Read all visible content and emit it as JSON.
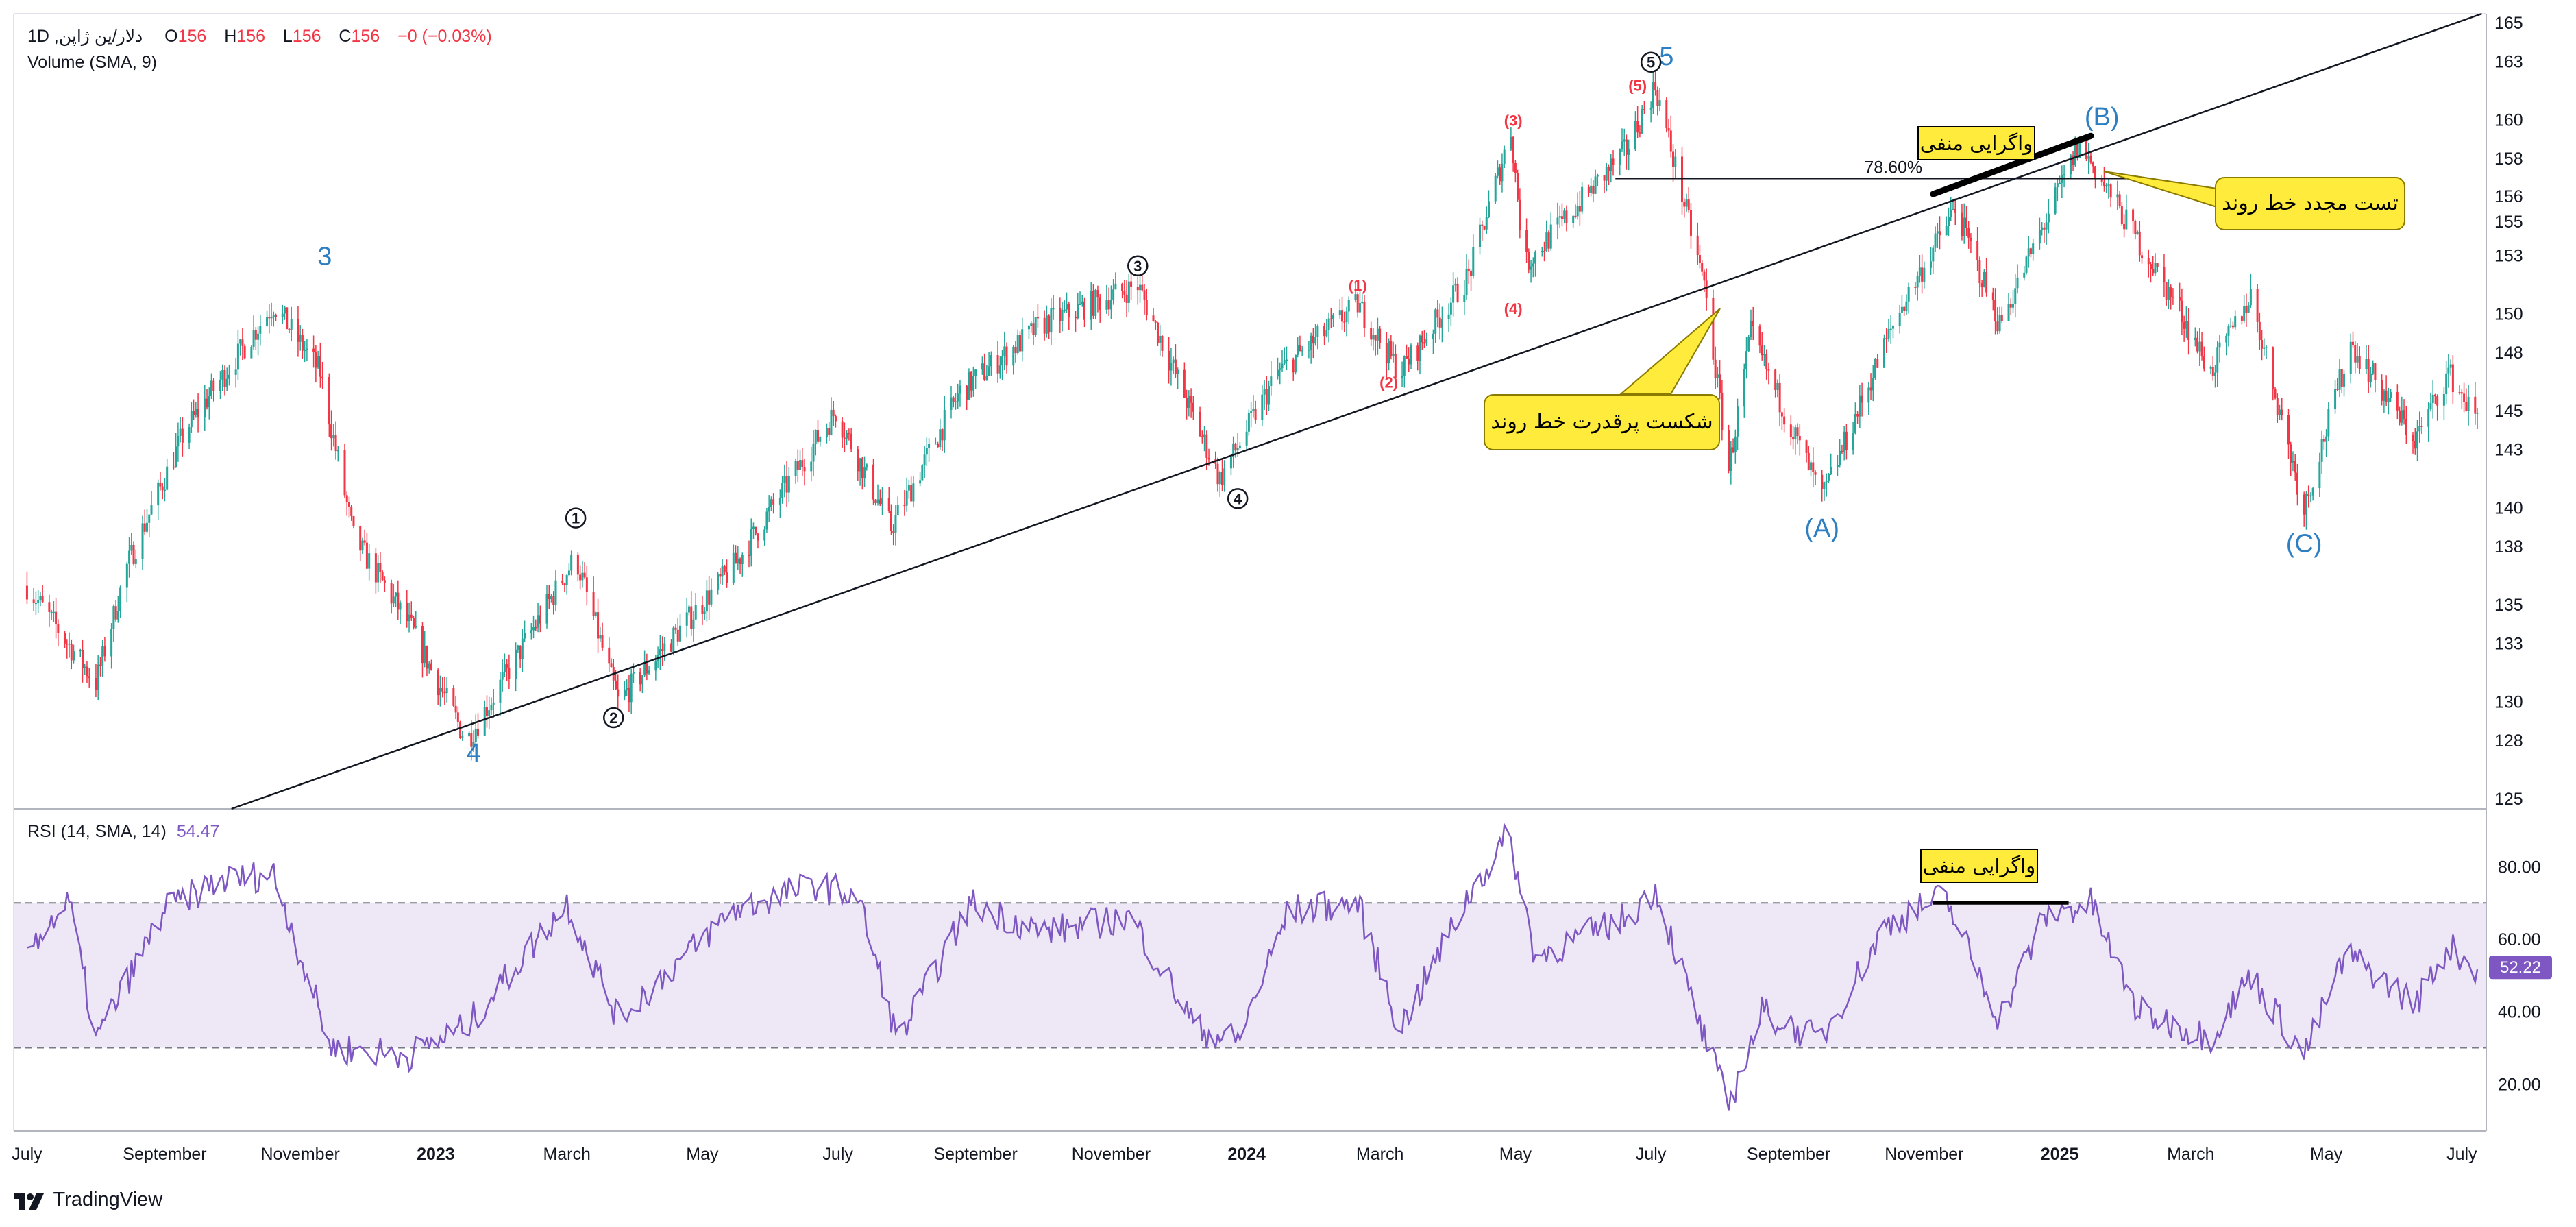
{
  "header": {
    "symbol_line": "دلار/ین ژاپن, 1D",
    "ohlc": {
      "o_label": "O",
      "o_value": "156",
      "h_label": "H",
      "h_value": "156",
      "l_label": "L",
      "l_value": "156",
      "c_label": "C",
      "c_value": "156",
      "change": "−0 (−0.03%)"
    },
    "volume_label": "Volume (SMA, 9)"
  },
  "rsi_panel": {
    "label": "RSI (14, SMA, 14)",
    "value": "54.47",
    "current_badge": "52.22",
    "band_upper": 70,
    "band_lower": 30
  },
  "colors": {
    "up": "#26a69a",
    "down": "#f23645",
    "wave_blue": "#2e7fc1",
    "rsi_line": "#7e57c2",
    "rsi_band_fill": "#ede7f6",
    "callout_fill": "#ffeb3b"
  },
  "annotations": {
    "breakout_callout": "شکست پرقدرت خط روند",
    "retest_callout": "تست مجدد خط روند",
    "divergence_tag": "واگرایی منفی",
    "rsi_divergence_tag": "واگرایی منفی",
    "fib_label": "78.60%"
  },
  "watermark": {
    "logo_icon": "tradingview-logo-icon",
    "text": "TradingView"
  },
  "chart_data": [
    {
      "type": "candlestick",
      "title": "",
      "x_tick_labels": [
        "July",
        "September",
        "November",
        "2023",
        "March",
        "May",
        "July",
        "September",
        "November",
        "2024",
        "March",
        "May",
        "July",
        "September",
        "November",
        "2025",
        "March",
        "May",
        "July"
      ],
      "y_tick_labels": [
        "165",
        "163",
        "160",
        "158",
        "156",
        "155",
        "153",
        "150",
        "148",
        "145",
        "143",
        "140",
        "138",
        "135",
        "133",
        "130",
        "128",
        "125"
      ],
      "ylim": [
        124.5,
        165.5
      ],
      "trend_path": [
        {
          "date": "2022-07-01",
          "price": 136.0
        },
        {
          "date": "2022-08-01",
          "price": 131.0
        },
        {
          "date": "2022-08-15",
          "price": 137.0
        },
        {
          "date": "2022-09-10",
          "price": 144.0
        },
        {
          "date": "2022-10-20",
          "price": 150.5
        },
        {
          "date": "2022-11-10",
          "price": 147.0
        },
        {
          "date": "2022-11-25",
          "price": 138.5
        },
        {
          "date": "2022-12-20",
          "price": 134.0
        },
        {
          "date": "2023-01-15",
          "price": 128.0
        },
        {
          "date": "2023-03-05",
          "price": 137.5
        },
        {
          "date": "2023-03-24",
          "price": 130.0
        },
        {
          "date": "2023-05-15",
          "price": 137.0
        },
        {
          "date": "2023-06-30",
          "price": 145.0
        },
        {
          "date": "2023-07-25",
          "price": 139.0
        },
        {
          "date": "2023-08-25",
          "price": 146.0
        },
        {
          "date": "2023-10-01",
          "price": 149.5
        },
        {
          "date": "2023-11-13",
          "price": 151.5
        },
        {
          "date": "2023-12-20",
          "price": 141.5
        },
        {
          "date": "2024-01-15",
          "price": 147.0
        },
        {
          "date": "2024-02-20",
          "price": 150.5
        },
        {
          "date": "2024-03-10",
          "price": 147.0
        },
        {
          "date": "2024-04-10",
          "price": 152.0
        },
        {
          "date": "2024-04-29",
          "price": 159.5
        },
        {
          "date": "2024-05-05",
          "price": 152.5
        },
        {
          "date": "2024-06-20",
          "price": 158.5
        },
        {
          "date": "2024-07-03",
          "price": 161.8
        },
        {
          "date": "2024-07-25",
          "price": 151.5
        },
        {
          "date": "2024-08-05",
          "price": 142.0
        },
        {
          "date": "2024-08-15",
          "price": 149.0
        },
        {
          "date": "2024-09-16",
          "price": 140.5
        },
        {
          "date": "2024-10-20",
          "price": 150.0
        },
        {
          "date": "2024-11-15",
          "price": 155.5
        },
        {
          "date": "2024-12-05",
          "price": 149.5
        },
        {
          "date": "2025-01-10",
          "price": 158.8
        },
        {
          "date": "2025-02-25",
          "price": 150.0
        },
        {
          "date": "2025-03-10",
          "price": 147.0
        },
        {
          "date": "2025-03-28",
          "price": 151.0
        },
        {
          "date": "2025-04-21",
          "price": 140.0
        },
        {
          "date": "2025-05-12",
          "price": 148.5
        },
        {
          "date": "2025-06-10",
          "price": 143.5
        },
        {
          "date": "2025-06-25",
          "price": 147.0
        },
        {
          "date": "2025-07-08",
          "price": 144.5
        }
      ],
      "trendline": [
        {
          "date": "2022-10-01",
          "price": 124.5
        },
        {
          "date": "2025-07-10",
          "price": 165.5
        }
      ],
      "fib_line": {
        "start": "2024-06-15",
        "end": "2025-02-05",
        "price": 157.0,
        "label": "78.60%"
      },
      "divergence_line": {
        "start": "2024-11-05",
        "end": "2025-01-15",
        "price_start": 156.2,
        "price_end": 159.2
      },
      "wave_labels": [
        {
          "text": "3",
          "date": "2022-11-12",
          "price": 153.0,
          "style": "blue"
        },
        {
          "text": "4",
          "date": "2023-01-18",
          "price": 127.4,
          "style": "blue"
        },
        {
          "text": "5",
          "date": "2024-07-08",
          "price": 163.3,
          "style": "blue"
        },
        {
          "text": "(A)",
          "date": "2024-09-16",
          "price": 139.0,
          "style": "blue"
        },
        {
          "text": "(B)",
          "date": "2025-01-20",
          "price": 160.2,
          "style": "blue"
        },
        {
          "text": "(C)",
          "date": "2025-04-21",
          "price": 138.2,
          "style": "blue"
        },
        {
          "text": "1",
          "date": "2023-03-05",
          "price": 139.5,
          "style": "circle"
        },
        {
          "text": "2",
          "date": "2023-03-22",
          "price": 129.2,
          "style": "circle"
        },
        {
          "text": "3",
          "date": "2023-11-13",
          "price": 152.5,
          "style": "circle"
        },
        {
          "text": "4",
          "date": "2023-12-28",
          "price": 140.5,
          "style": "circle"
        },
        {
          "text": "5",
          "date": "2024-07-01",
          "price": 163.0,
          "style": "circle"
        },
        {
          "text": "(1)",
          "date": "2024-02-20",
          "price": 151.5,
          "style": "red"
        },
        {
          "text": "(2)",
          "date": "2024-03-05",
          "price": 146.5,
          "style": "red"
        },
        {
          "text": "(3)",
          "date": "2024-04-30",
          "price": 160.0,
          "style": "red"
        },
        {
          "text": "(4)",
          "date": "2024-04-30",
          "price": 150.3,
          "style": "red"
        },
        {
          "text": "(5)",
          "date": "2024-06-25",
          "price": 161.8,
          "style": "red"
        }
      ]
    },
    {
      "type": "line",
      "title": "",
      "series": [
        {
          "name": "RSI"
        }
      ],
      "y_tick_labels": [
        "80.00",
        "60.00",
        "40.00",
        "20.00"
      ],
      "ylim": [
        7,
        96
      ],
      "bands": [
        70,
        30
      ],
      "trend_path": [
        {
          "date": "2022-07-01",
          "value": 58
        },
        {
          "date": "2022-07-20",
          "value": 70
        },
        {
          "date": "2022-08-01",
          "value": 32
        },
        {
          "date": "2022-09-01",
          "value": 68
        },
        {
          "date": "2022-09-25",
          "value": 76
        },
        {
          "date": "2022-10-20",
          "value": 78
        },
        {
          "date": "2022-11-15",
          "value": 30
        },
        {
          "date": "2022-12-20",
          "value": 28
        },
        {
          "date": "2023-01-15",
          "value": 36
        },
        {
          "date": "2023-03-01",
          "value": 70
        },
        {
          "date": "2023-03-24",
          "value": 38
        },
        {
          "date": "2023-05-15",
          "value": 68
        },
        {
          "date": "2023-06-20",
          "value": 75
        },
        {
          "date": "2023-07-10",
          "value": 72
        },
        {
          "date": "2023-07-28",
          "value": 32
        },
        {
          "date": "2023-08-30",
          "value": 70
        },
        {
          "date": "2023-10-01",
          "value": 62
        },
        {
          "date": "2023-11-10",
          "value": 66
        },
        {
          "date": "2023-12-10",
          "value": 35
        },
        {
          "date": "2023-12-28",
          "value": 32
        },
        {
          "date": "2024-01-20",
          "value": 68
        },
        {
          "date": "2024-02-20",
          "value": 70
        },
        {
          "date": "2024-03-10",
          "value": 35
        },
        {
          "date": "2024-04-10",
          "value": 72
        },
        {
          "date": "2024-04-28",
          "value": 89
        },
        {
          "date": "2024-05-10",
          "value": 55
        },
        {
          "date": "2024-06-20",
          "value": 66
        },
        {
          "date": "2024-07-03",
          "value": 74
        },
        {
          "date": "2024-07-22",
          "value": 38
        },
        {
          "date": "2024-08-05",
          "value": 14
        },
        {
          "date": "2024-08-20",
          "value": 40
        },
        {
          "date": "2024-09-15",
          "value": 32
        },
        {
          "date": "2024-10-15",
          "value": 64
        },
        {
          "date": "2024-11-10",
          "value": 72
        },
        {
          "date": "2024-12-05",
          "value": 38
        },
        {
          "date": "2024-12-25",
          "value": 66
        },
        {
          "date": "2025-01-15",
          "value": 70
        },
        {
          "date": "2025-02-05",
          "value": 40
        },
        {
          "date": "2025-03-10",
          "value": 33
        },
        {
          "date": "2025-03-28",
          "value": 50
        },
        {
          "date": "2025-04-21",
          "value": 28
        },
        {
          "date": "2025-05-10",
          "value": 56
        },
        {
          "date": "2025-06-10",
          "value": 42
        },
        {
          "date": "2025-06-25",
          "value": 58
        },
        {
          "date": "2025-07-08",
          "value": 52
        }
      ],
      "divergence_line": {
        "start": "2024-11-05",
        "end": "2025-01-05",
        "value": 70
      }
    }
  ]
}
